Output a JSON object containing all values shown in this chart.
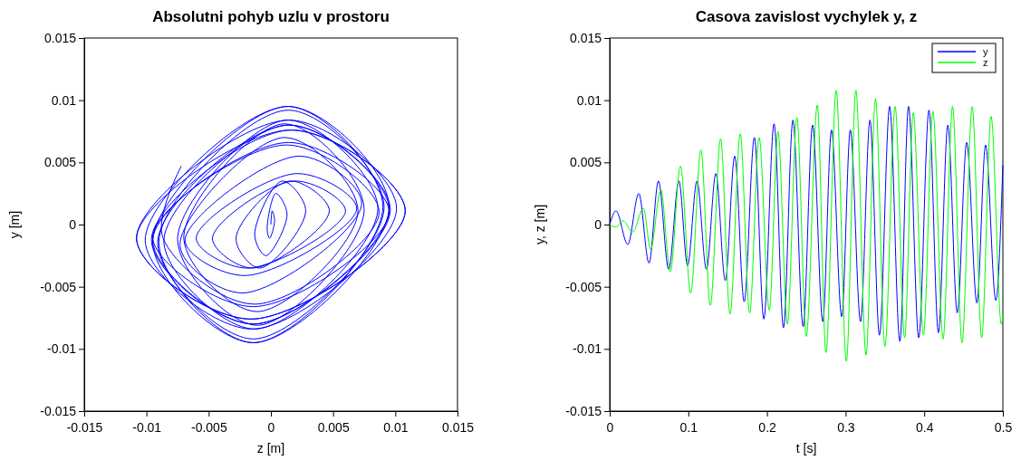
{
  "chart_data": [
    {
      "type": "line",
      "title": "Absolutni pohyb uzlu v prostoru",
      "xlabel": "z [m]",
      "ylabel": "y [m]",
      "xlim": [
        -0.015,
        0.015
      ],
      "ylim": [
        -0.015,
        0.015
      ],
      "xticks": [
        -0.015,
        -0.01,
        -0.005,
        0,
        0.005,
        0.01,
        0.015
      ],
      "yticks": [
        -0.015,
        -0.01,
        -0.005,
        0,
        0.005,
        0.01,
        0.015
      ],
      "series": [
        {
          "color": "#0000ff",
          "x": [
            0,
            0.0001,
            0.0003,
            -0.0001,
            -0.0003,
            0.0004,
            0.0013,
            -0.0004,
            -0.0013,
            0.0009,
            0.0028,
            -0.0009,
            -0.0028,
            0.0015,
            0.0047,
            -0.0015,
            -0.0047,
            0.0019,
            0.006,
            -0.0019,
            -0.006,
            0.0021,
            0.0069,
            -0.0021,
            -0.0069,
            0.0023,
            0.0073,
            -0.0023,
            -0.0073,
            0.0011,
            0.007,
            -0.0011,
            -0.007,
            0.0011,
            0.0075,
            -0.0011,
            -0.0075,
            0.0013,
            0.0086,
            -0.0013,
            -0.0086,
            0.0014,
            0.0096,
            -0.0014,
            -0.0096,
            0.0016,
            0.0108,
            -0.0016,
            -0.0108,
            0.0016,
            0.0108,
            -0.0016,
            -0.0108,
            0.0015,
            0.0101,
            -0.0015,
            -0.0101,
            0.0014,
            0.0095,
            -0.0014,
            -0.0095,
            0.0014,
            0.009,
            -0.0014,
            -0.009,
            0.0014,
            0.0091,
            -0.0014,
            -0.0091,
            0.0014,
            0.0095,
            -0.0014,
            -0.0095,
            0.0014,
            0.0095,
            -0.0014,
            -0.0095,
            0.0013,
            0.0087,
            -0.0013,
            -0.0087,
            -0.0072
          ],
          "values": [
            0,
            0.0011,
            0.0003,
            -0.0011,
            -0.0003,
            0.0025,
            0.0008,
            -0.0025,
            -0.0008,
            0.0035,
            0.0011,
            -0.0035,
            -0.0011,
            0.0035,
            0.0011,
            -0.0035,
            -0.0011,
            0.0035,
            0.0011,
            -0.0035,
            -0.0011,
            0.0041,
            0.0013,
            -0.0041,
            -0.0013,
            0.0055,
            0.0017,
            -0.0055,
            -0.0017,
            0.007,
            0.0011,
            -0.007,
            -0.0011,
            0.0081,
            0.0012,
            -0.0081,
            -0.0012,
            0.0084,
            0.0013,
            -0.0084,
            -0.0013,
            0.008,
            0.0012,
            -0.008,
            -0.0012,
            0.0076,
            0.0011,
            -0.0076,
            -0.0011,
            0.0076,
            0.0011,
            -0.0076,
            -0.0011,
            0.0084,
            0.0013,
            -0.0084,
            -0.0013,
            0.0095,
            0.0014,
            -0.0095,
            -0.0014,
            0.0095,
            0.0014,
            -0.0095,
            -0.0014,
            0.0092,
            0.0014,
            -0.0092,
            -0.0014,
            0.008,
            0.0012,
            -0.008,
            -0.0012,
            0.0066,
            0.001,
            -0.0066,
            -0.001,
            0.0064,
            0.001,
            -0.0064,
            -0.001,
            0.0047
          ]
        }
      ]
    },
    {
      "type": "line",
      "title": "Casova zavislost vychylek y, z",
      "xlabel": "t [s]",
      "ylabel": "y, z [m]",
      "xlim": [
        0,
        0.5
      ],
      "ylim": [
        -0.015,
        0.015
      ],
      "xticks": [
        0,
        0.1,
        0.2,
        0.3,
        0.4,
        0.5
      ],
      "yticks": [
        -0.015,
        -0.01,
        -0.005,
        0,
        0.005,
        0.01,
        0.015
      ],
      "legend": "top right",
      "series": [
        {
          "name": "y",
          "color": "#0000ff",
          "x": [
            0,
            0.008,
            0.023,
            0.037,
            0.05,
            0.062,
            0.075,
            0.088,
            0.099,
            0.111,
            0.123,
            0.135,
            0.147,
            0.159,
            0.171,
            0.184,
            0.196,
            0.209,
            0.221,
            0.233,
            0.246,
            0.258,
            0.271,
            0.282,
            0.295,
            0.306,
            0.319,
            0.331,
            0.343,
            0.356,
            0.369,
            0.38,
            0.393,
            0.406,
            0.418,
            0.43,
            0.442,
            0.454,
            0.467,
            0.478,
            0.491,
            0.5
          ],
          "values": [
            0,
            0.0011,
            -0.0016,
            0.0025,
            -0.0031,
            0.0035,
            -0.0036,
            0.0035,
            -0.0033,
            0.0035,
            -0.0036,
            0.0041,
            -0.0045,
            0.0055,
            -0.0062,
            0.007,
            -0.0076,
            0.0081,
            -0.0083,
            0.0084,
            -0.0082,
            0.008,
            -0.0078,
            0.0076,
            -0.0074,
            0.0076,
            -0.0078,
            0.0084,
            -0.0089,
            0.0095,
            -0.0094,
            0.0095,
            -0.0091,
            0.0092,
            -0.0087,
            0.008,
            -0.0071,
            0.0066,
            -0.0063,
            0.0064,
            -0.0061,
            0.0048
          ]
        },
        {
          "name": "z",
          "color": "#00ff00",
          "x": [
            0,
            0.008,
            0.017,
            0.029,
            0.043,
            0.052,
            0.065,
            0.077,
            0.09,
            0.103,
            0.116,
            0.128,
            0.141,
            0.153,
            0.166,
            0.178,
            0.19,
            0.203,
            0.214,
            0.226,
            0.238,
            0.25,
            0.264,
            0.275,
            0.288,
            0.301,
            0.313,
            0.326,
            0.338,
            0.35,
            0.363,
            0.375,
            0.386,
            0.399,
            0.411,
            0.424,
            0.436,
            0.448,
            0.461,
            0.473,
            0.485,
            0.498,
            0.5
          ],
          "values": [
            0,
            -0.0002,
            0.0003,
            -0.0006,
            0.0013,
            -0.002,
            0.0028,
            -0.0038,
            0.0047,
            -0.0055,
            0.006,
            -0.0065,
            0.0069,
            -0.0072,
            0.0073,
            -0.0071,
            0.007,
            -0.0069,
            0.0075,
            -0.008,
            0.0086,
            -0.009,
            0.0096,
            -0.0103,
            0.0108,
            -0.011,
            0.0108,
            -0.0105,
            0.0101,
            -0.0098,
            0.0095,
            -0.0091,
            0.009,
            -0.0089,
            0.0091,
            -0.0092,
            0.0095,
            -0.0095,
            0.0095,
            -0.0091,
            0.0087,
            -0.008,
            -0.0072
          ]
        }
      ]
    }
  ]
}
